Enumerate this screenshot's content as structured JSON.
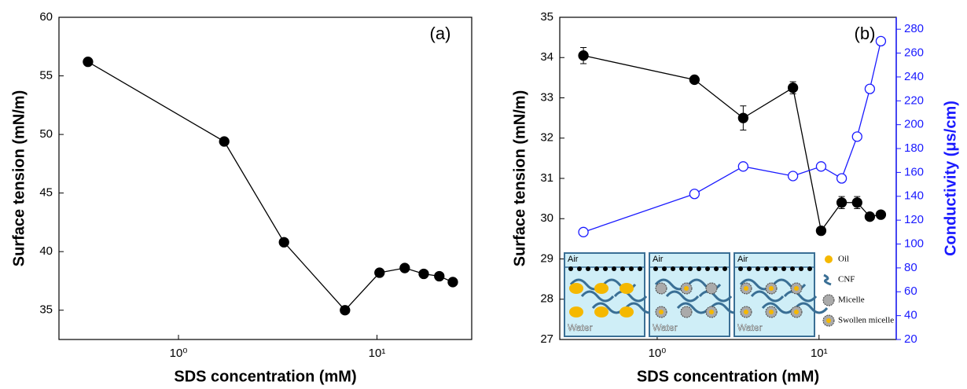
{
  "chart_data": [
    {
      "type": "line",
      "annotation": "(a)",
      "x_label": "SDS concentration (mM)",
      "y_label": "Surface tension (mN/m)",
      "xscale": "log",
      "xlim": [
        0.25,
        30
      ],
      "xticks": [
        {
          "value": 1,
          "label": "10⁰"
        },
        {
          "value": 10,
          "label": "10¹"
        }
      ],
      "ylim": [
        32.5,
        60
      ],
      "yticks": [
        35,
        40,
        45,
        50,
        55,
        60
      ],
      "x": [
        0.35,
        1.7,
        3.4,
        6.9,
        10.3,
        13.8,
        17.2,
        20.6,
        24.1
      ],
      "series": [
        {
          "color": "#000000",
          "marker": "filled",
          "values": [
            56.2,
            49.4,
            40.8,
            35.0,
            38.2,
            38.6,
            38.1,
            37.9,
            37.4
          ]
        }
      ]
    },
    {
      "type": "line",
      "annotation": "(b)",
      "x_label": "SDS concentration (mM)",
      "y_label": "Surface tension (mN/m)",
      "y2_label": "Conductivity (μs/cm)",
      "xscale": "log",
      "xlim": [
        0.25,
        30
      ],
      "xticks": [
        {
          "value": 1,
          "label": "10⁰"
        },
        {
          "value": 10,
          "label": "10¹"
        }
      ],
      "ylim": [
        27,
        35
      ],
      "yticks": [
        27,
        28,
        29,
        30,
        31,
        32,
        33,
        34,
        35
      ],
      "y2lim": [
        20,
        290
      ],
      "y2ticks": [
        20,
        40,
        60,
        80,
        100,
        120,
        140,
        160,
        180,
        200,
        220,
        240,
        260,
        280
      ],
      "y2color": "#1a1aff",
      "x": [
        0.35,
        1.7,
        3.4,
        6.9,
        10.3,
        13.8,
        17.2,
        20.6,
        24.1
      ],
      "series": [
        {
          "color": "#000000",
          "marker": "filled",
          "values": [
            34.05,
            33.45,
            32.5,
            33.25,
            29.7,
            30.4,
            30.4,
            30.05,
            30.1
          ],
          "errors": [
            0.2,
            0.05,
            0.3,
            0.15,
            0.05,
            0.15,
            0.15,
            0.05,
            0.05
          ]
        },
        {
          "color": "#1a1aff",
          "marker": "open",
          "axis": "y2",
          "values": [
            110,
            142,
            165,
            157,
            165,
            155,
            190,
            230,
            270
          ]
        }
      ],
      "inset": {
        "boxes": [
          {
            "top": "Air",
            "bottom": "Water"
          },
          {
            "top": "Air",
            "bottom": "Water"
          },
          {
            "top": "Air",
            "bottom": "Water"
          }
        ],
        "legend": [
          "Oil",
          "CNF",
          "Micelle",
          "Swollen micelle"
        ]
      }
    }
  ]
}
